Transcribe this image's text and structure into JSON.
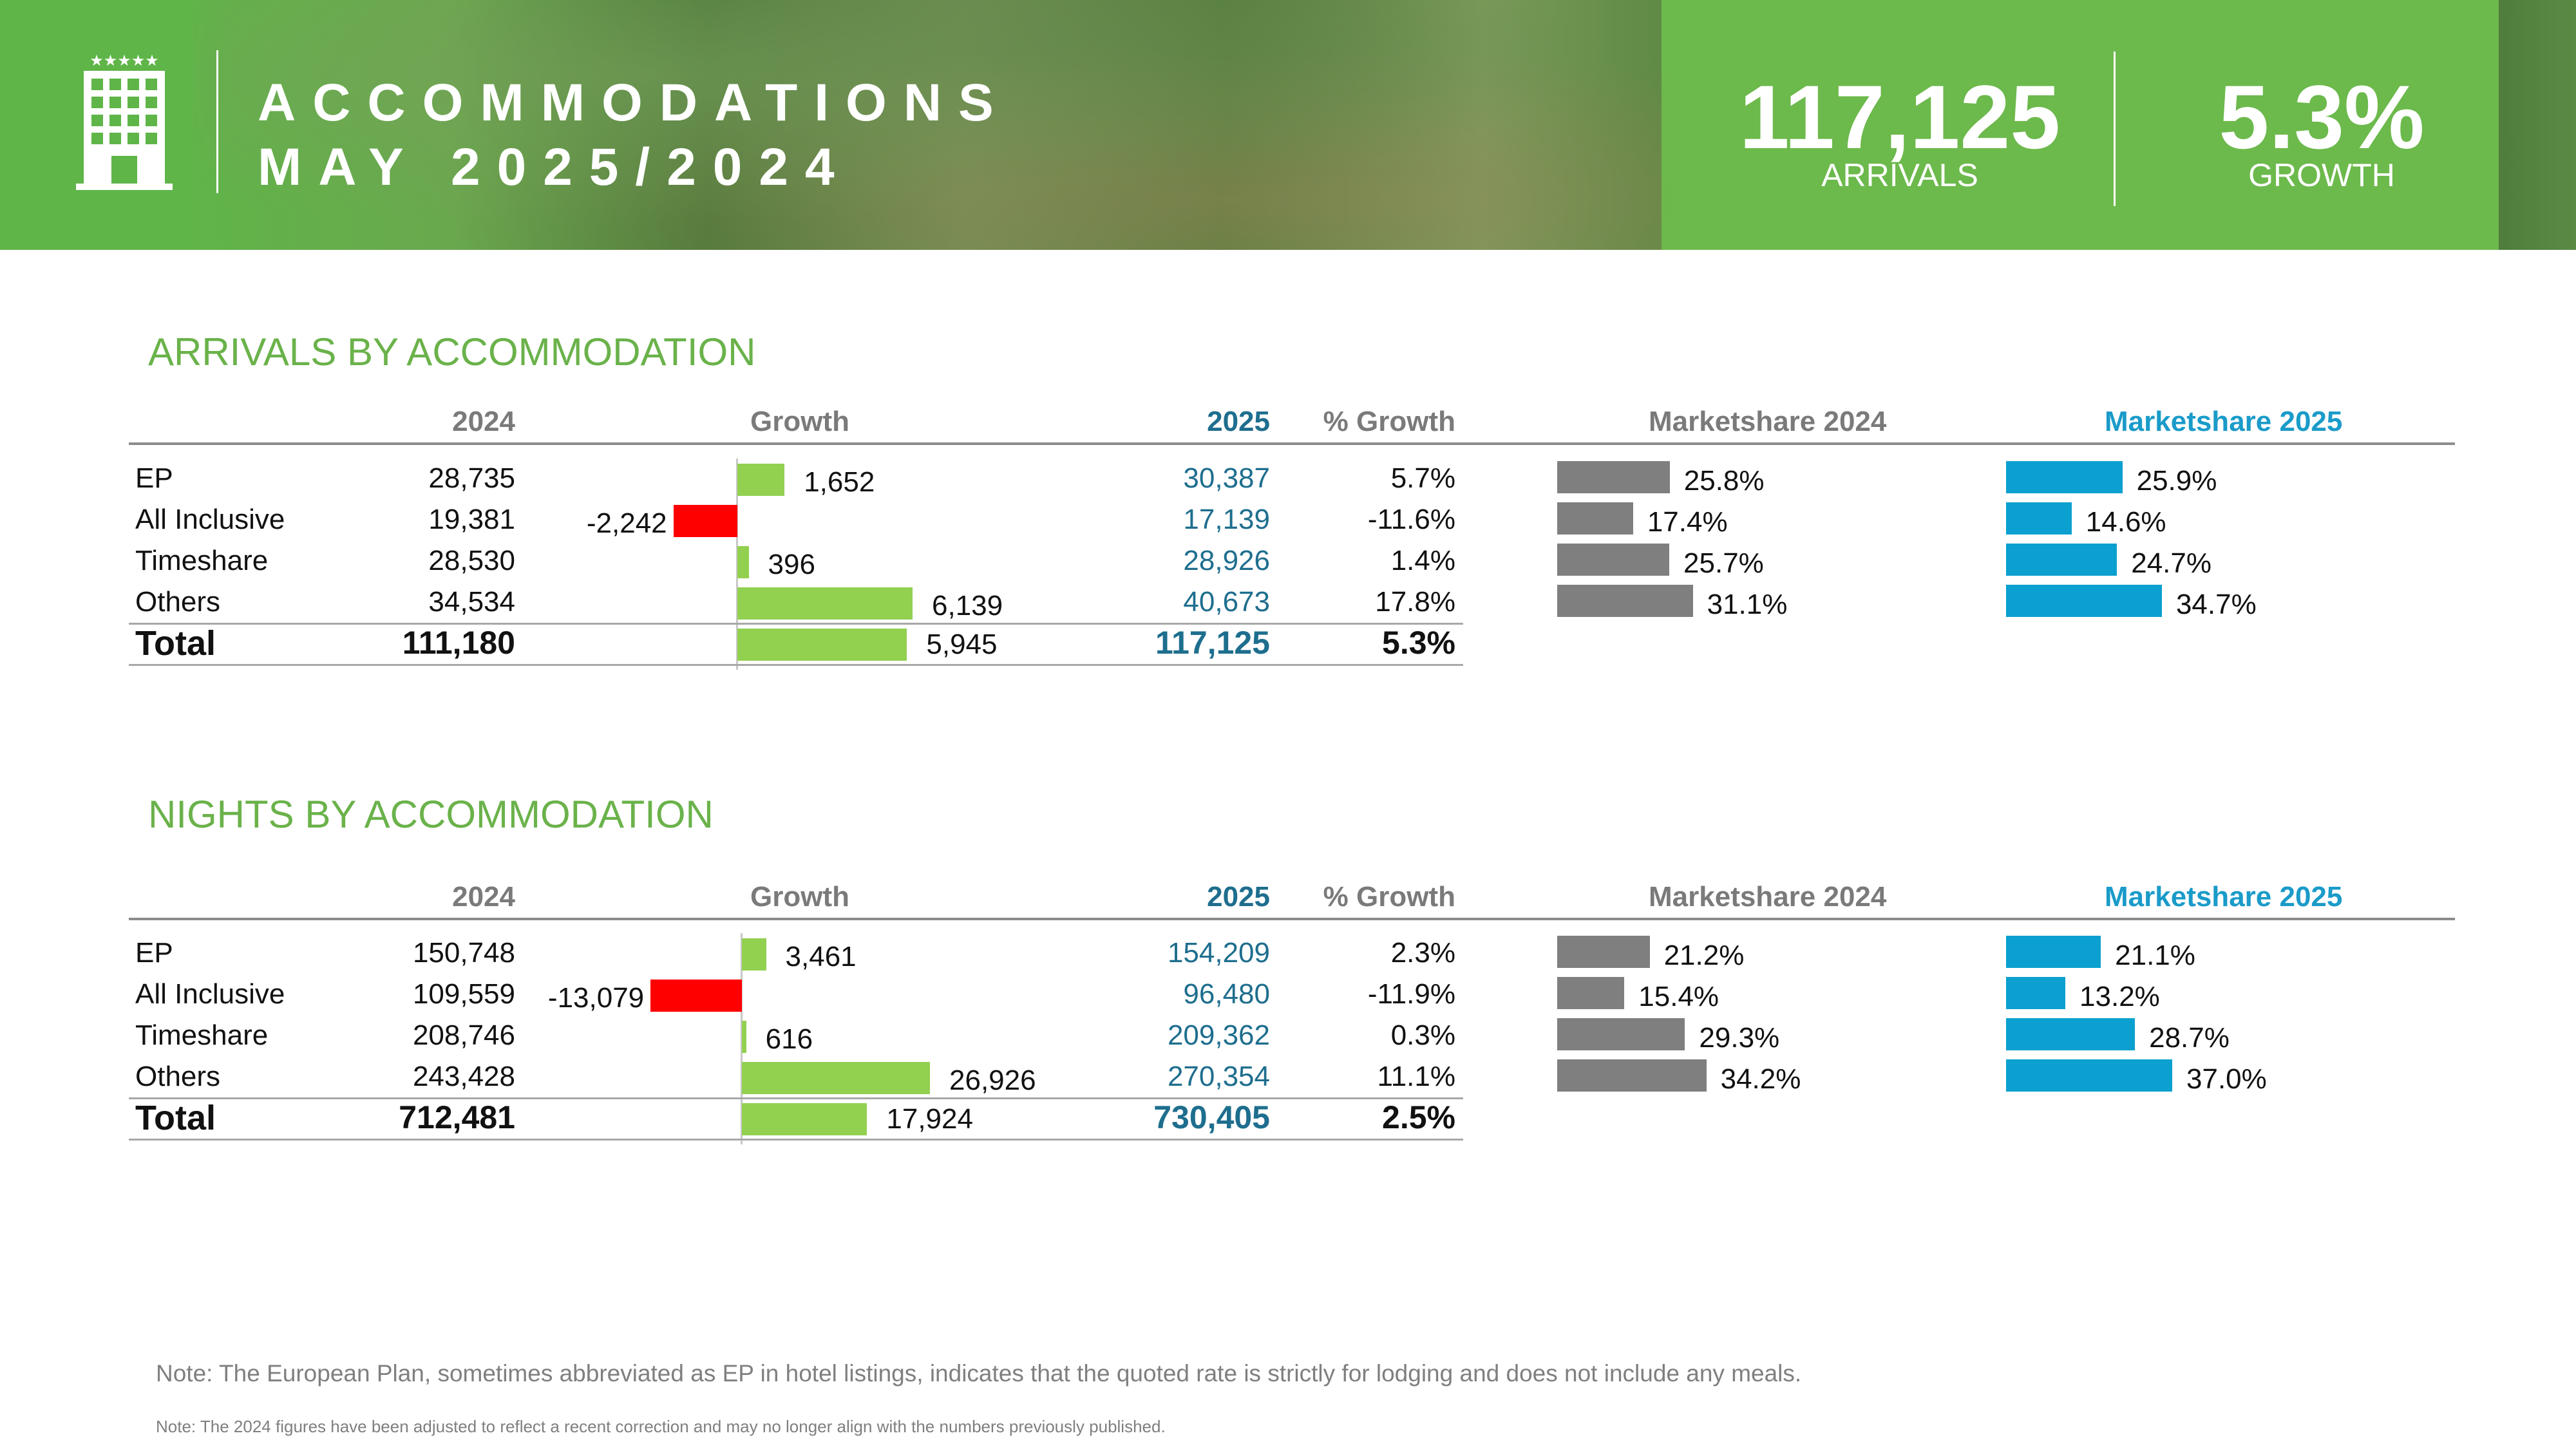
{
  "header": {
    "title_line1": "ACCOMMODATIONS",
    "title_line2": "MAY 2025/2024",
    "kpi_arrivals_value": "117,125",
    "kpi_arrivals_label": "ARRIVALS",
    "kpi_growth_value": "5.3%",
    "kpi_growth_label": "GROWTH",
    "icon": "hotel-building-icon",
    "stars": "★★★★★"
  },
  "colors": {
    "green": "#6ab24a",
    "growth_pos": "#92d050",
    "growth_neg": "#ff0000",
    "share_2024": "#7f7f7f",
    "share_2025": "#0ba0cf",
    "value_2025": "#1e6e8e"
  },
  "columns": {
    "y2024": "2024",
    "growth": "Growth",
    "y2025": "2025",
    "pct_growth": "% Growth",
    "ms2024": "Marketshare 2024",
    "ms2025": "Marketshare 2025"
  },
  "arrivals": {
    "title": "ARRIVALS BY ACCOMMODATION",
    "rows": [
      {
        "name": "EP",
        "v2024": "28,735",
        "growth": "1,652",
        "v2025": "30,387",
        "pct": "5.7%",
        "ms2024": "25.8%",
        "ms2025": "25.9%"
      },
      {
        "name": "All Inclusive",
        "v2024": "19,381",
        "growth": "-2,242",
        "v2025": "17,139",
        "pct": "-11.6%",
        "ms2024": "17.4%",
        "ms2025": "14.6%"
      },
      {
        "name": "Timeshare",
        "v2024": "28,530",
        "growth": "396",
        "v2025": "28,926",
        "pct": "1.4%",
        "ms2024": "25.7%",
        "ms2025": "24.7%"
      },
      {
        "name": "Others",
        "v2024": "34,534",
        "growth": "6,139",
        "v2025": "40,673",
        "pct": "17.8%",
        "ms2024": "31.1%",
        "ms2025": "34.7%"
      }
    ],
    "total": {
      "name": "Total",
      "v2024": "111,180",
      "growth": "5,945",
      "v2025": "117,125",
      "pct": "5.3%"
    }
  },
  "nights": {
    "title": "NIGHTS BY ACCOMMODATION",
    "rows": [
      {
        "name": "EP",
        "v2024": "150,748",
        "growth": "3,461",
        "v2025": "154,209",
        "pct": "2.3%",
        "ms2024": "21.2%",
        "ms2025": "21.1%"
      },
      {
        "name": "All Inclusive",
        "v2024": "109,559",
        "growth": "-13,079",
        "v2025": "96,480",
        "pct": "-11.9%",
        "ms2024": "15.4%",
        "ms2025": "13.2%"
      },
      {
        "name": "Timeshare",
        "v2024": "208,746",
        "growth": "616",
        "v2025": "209,362",
        "pct": "0.3%",
        "ms2024": "29.3%",
        "ms2025": "28.7%"
      },
      {
        "name": "Others",
        "v2024": "243,428",
        "growth": "26,926",
        "v2025": "270,354",
        "pct": "11.1%",
        "ms2024": "34.2%",
        "ms2025": "37.0%"
      }
    ],
    "total": {
      "name": "Total",
      "v2024": "712,481",
      "growth": "17,924",
      "v2025": "730,405",
      "pct": "2.5%"
    }
  },
  "notes": {
    "note1": "Note: The European Plan, sometimes abbreviated as EP in hotel listings, indicates that the quoted rate is strictly for lodging and does not include any meals.",
    "note2": "Note: The 2024 figures have been adjusted to reflect a recent correction and may no longer align with the numbers previously published."
  }
}
